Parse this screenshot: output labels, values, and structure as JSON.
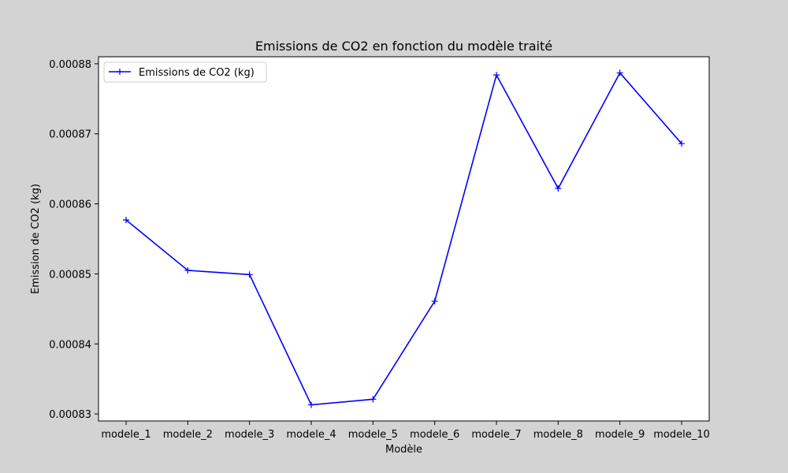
{
  "chart_data": {
    "type": "line",
    "title": "Emissions de CO2 en fonction du modèle traité",
    "xlabel": "Modèle",
    "ylabel": "Emission de CO2 (kg)",
    "categories": [
      "modele_1",
      "modele_2",
      "modele_3",
      "modele_4",
      "modele_5",
      "modele_6",
      "modele_7",
      "modele_8",
      "modele_9",
      "modele_10"
    ],
    "series": [
      {
        "name": "Emissions de CO2 (kg)",
        "color": "#0000ff",
        "marker": "plus",
        "values": [
          0.0008577,
          0.0008505,
          0.0008499,
          0.0008313,
          0.0008321,
          0.0008461,
          0.0008784,
          0.0008622,
          0.0008787,
          0.0008686
        ]
      }
    ],
    "ylim": [
      0.000829,
      0.000881
    ],
    "yticks": [
      0.00083,
      0.00084,
      0.00085,
      0.00086,
      0.00087,
      0.00088
    ],
    "ytick_labels": [
      "0.00083",
      "0.00084",
      "0.00085",
      "0.00086",
      "0.00087",
      "0.00088"
    ],
    "grid": false,
    "legend_position": "top-left"
  }
}
